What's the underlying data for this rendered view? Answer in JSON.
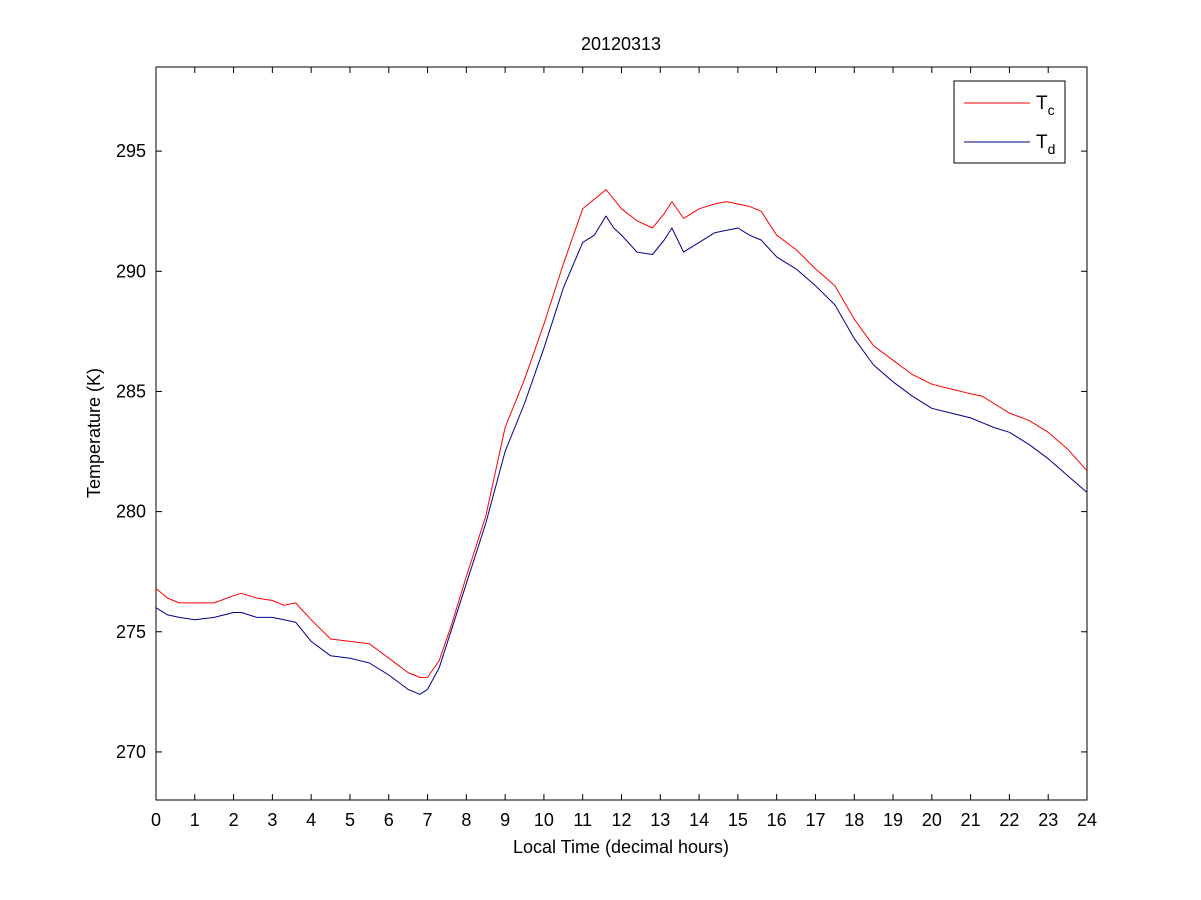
{
  "chart_data": {
    "type": "line",
    "title": "20120313",
    "xlabel": "Local Time (decimal hours)",
    "ylabel": "Temperature (K)",
    "xlim": [
      0,
      24
    ],
    "ylim": [
      268,
      298.5
    ],
    "xticks": [
      0,
      1,
      2,
      3,
      4,
      5,
      6,
      7,
      8,
      9,
      10,
      11,
      12,
      13,
      14,
      15,
      16,
      17,
      18,
      19,
      20,
      21,
      22,
      23,
      24
    ],
    "yticks": [
      270,
      275,
      280,
      285,
      290,
      295
    ],
    "grid": false,
    "legend_position": "top-right",
    "series": [
      {
        "name": "T",
        "subscript": "c",
        "color": "#ff0000",
        "x": [
          0,
          0.3,
          0.6,
          1,
          1.5,
          2,
          2.2,
          2.6,
          3,
          3.3,
          3.6,
          4,
          4.5,
          5,
          5.5,
          6,
          6.5,
          6.8,
          7,
          7.3,
          7.6,
          8,
          8.5,
          9,
          9.5,
          10,
          10.5,
          11,
          11.3,
          11.6,
          11.8,
          12,
          12.4,
          12.8,
          13.1,
          13.3,
          13.6,
          14,
          14.4,
          14.7,
          15,
          15.3,
          15.6,
          16,
          16.5,
          17,
          17.5,
          18,
          18.5,
          19,
          19.5,
          20,
          20.5,
          21,
          21.3,
          21.6,
          22,
          22.5,
          23,
          23.5,
          24
        ],
        "y": [
          276.8,
          276.4,
          276.2,
          276.2,
          276.2,
          276.5,
          276.6,
          276.4,
          276.3,
          276.1,
          276.2,
          275.5,
          274.7,
          274.6,
          274.5,
          273.9,
          273.3,
          273.1,
          273.1,
          273.8,
          275.2,
          277.3,
          279.8,
          283.5,
          285.5,
          287.8,
          290.3,
          292.6,
          293.0,
          293.4,
          293.0,
          292.6,
          292.1,
          291.8,
          292.4,
          292.9,
          292.2,
          292.6,
          292.8,
          292.9,
          292.8,
          292.7,
          292.5,
          291.5,
          290.9,
          290.1,
          289.4,
          288.0,
          286.9,
          286.3,
          285.7,
          285.3,
          285.1,
          284.9,
          284.8,
          284.5,
          284.1,
          283.8,
          283.3,
          282.6,
          281.7
        ]
      },
      {
        "name": "T",
        "subscript": "d",
        "color": "#00008b",
        "x": [
          0,
          0.3,
          0.6,
          1,
          1.5,
          2,
          2.2,
          2.6,
          3,
          3.3,
          3.6,
          4,
          4.5,
          5,
          5.5,
          6,
          6.5,
          6.8,
          7,
          7.3,
          7.6,
          8,
          8.5,
          9,
          9.5,
          10,
          10.5,
          11,
          11.3,
          11.6,
          11.8,
          12,
          12.4,
          12.8,
          13.1,
          13.3,
          13.6,
          14,
          14.4,
          14.7,
          15,
          15.3,
          15.6,
          16,
          16.5,
          17,
          17.5,
          18,
          18.5,
          19,
          19.5,
          20,
          20.5,
          21,
          21.3,
          21.6,
          22,
          22.5,
          23,
          23.5,
          24
        ],
        "y": [
          276.0,
          275.7,
          275.6,
          275.5,
          275.6,
          275.8,
          275.8,
          275.6,
          275.6,
          275.5,
          275.4,
          274.6,
          274.0,
          273.9,
          273.7,
          273.2,
          272.6,
          272.4,
          272.6,
          273.5,
          275.0,
          277.0,
          279.5,
          282.5,
          284.5,
          286.8,
          289.3,
          291.2,
          291.5,
          292.3,
          291.8,
          291.5,
          290.8,
          290.7,
          291.3,
          291.8,
          290.8,
          291.2,
          291.6,
          291.7,
          291.8,
          291.5,
          291.3,
          290.6,
          290.1,
          289.4,
          288.6,
          287.2,
          286.1,
          285.4,
          284.8,
          284.3,
          284.1,
          283.9,
          283.7,
          283.5,
          283.3,
          282.8,
          282.2,
          281.5,
          280.8
        ]
      }
    ]
  }
}
